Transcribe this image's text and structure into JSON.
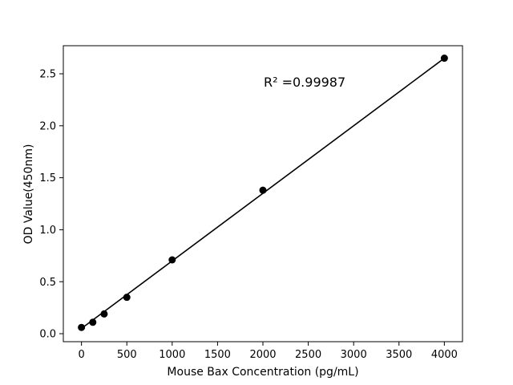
{
  "figure": {
    "background": "#ffffff",
    "foreground": "#000000"
  },
  "chart_data": {
    "type": "scatter",
    "title": "",
    "xlabel": "Mouse Bax Concentration (pg/mL)",
    "ylabel": "OD Value(450nm)",
    "annotation": {
      "text": "R² =0.99987",
      "x": 2460,
      "y": 2.42
    },
    "x": [
      0,
      125,
      250,
      500,
      1000,
      2000,
      4000
    ],
    "y": [
      0.06,
      0.11,
      0.19,
      0.35,
      0.71,
      1.38,
      2.65
    ],
    "fit_line": {
      "x": [
        0,
        4000
      ],
      "y": [
        0.05,
        2.65
      ]
    },
    "xlim": [
      -200,
      4200
    ],
    "ylim": [
      -0.077,
      2.77
    ],
    "xticks": [
      0,
      500,
      1000,
      1500,
      2000,
      2500,
      3000,
      3500,
      4000
    ],
    "yticks": [
      0.0,
      0.5,
      1.0,
      1.5,
      2.0,
      2.5
    ],
    "grid": false,
    "legend": null,
    "marker_color": "#000000",
    "line_color": "#000000"
  }
}
